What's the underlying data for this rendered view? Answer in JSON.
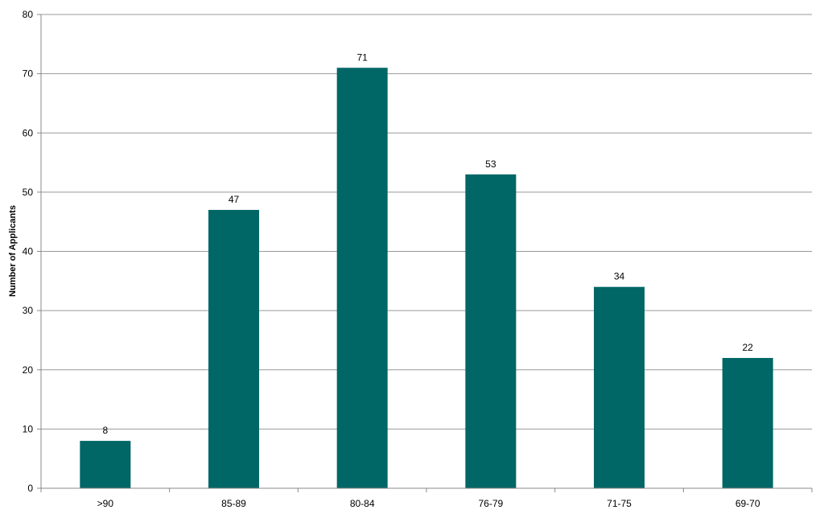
{
  "chart_data": {
    "type": "bar",
    "title": "",
    "xlabel": "",
    "ylabel": "Number of Applicants",
    "categories": [
      ">90",
      "85-89",
      "80-84",
      "76-79",
      "71-75",
      "69-70"
    ],
    "values": [
      8,
      47,
      71,
      53,
      34,
      22
    ],
    "ylim": [
      0,
      80
    ],
    "yticks": [
      0,
      10,
      20,
      30,
      40,
      50,
      60,
      70,
      80
    ],
    "grid": true,
    "legend": "none",
    "data_labels": true,
    "colors": {
      "bar": "#006666",
      "grid": "#999999",
      "axis": "#888888"
    }
  }
}
